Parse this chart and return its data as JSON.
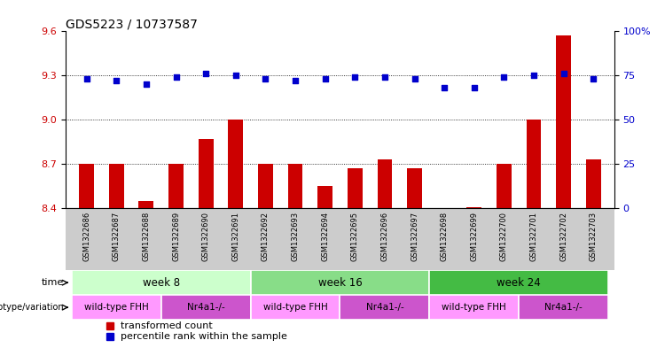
{
  "title": "GDS5223 / 10737587",
  "samples": [
    "GSM1322686",
    "GSM1322687",
    "GSM1322688",
    "GSM1322689",
    "GSM1322690",
    "GSM1322691",
    "GSM1322692",
    "GSM1322693",
    "GSM1322694",
    "GSM1322695",
    "GSM1322696",
    "GSM1322697",
    "GSM1322698",
    "GSM1322699",
    "GSM1322700",
    "GSM1322701",
    "GSM1322702",
    "GSM1322703"
  ],
  "red_values": [
    8.7,
    8.7,
    8.45,
    8.7,
    8.87,
    9.0,
    8.7,
    8.7,
    8.55,
    8.67,
    8.73,
    8.67,
    8.4,
    8.41,
    8.7,
    9.0,
    9.57,
    8.73
  ],
  "blue_values": [
    73,
    72,
    70,
    74,
    76,
    75,
    73,
    72,
    73,
    74,
    74,
    73,
    68,
    68,
    74,
    75,
    76,
    73
  ],
  "ylim_left": [
    8.4,
    9.6
  ],
  "ylim_right": [
    0,
    100
  ],
  "yticks_left": [
    8.4,
    8.7,
    9.0,
    9.3,
    9.6
  ],
  "yticks_right": [
    0,
    25,
    50,
    75,
    100
  ],
  "hlines": [
    8.7,
    9.0,
    9.3
  ],
  "bar_color": "#cc0000",
  "dot_color": "#0000cc",
  "week8_color": "#ccffcc",
  "week16_color": "#88dd88",
  "week24_color": "#44bb44",
  "wt_color": "#ff99ff",
  "nr_color": "#cc55cc",
  "sample_bg": "#cccccc",
  "time_groups": [
    {
      "label": "week 8",
      "start": 0,
      "end": 5
    },
    {
      "label": "week 16",
      "start": 6,
      "end": 11
    },
    {
      "label": "week 24",
      "start": 12,
      "end": 17
    }
  ],
  "genotype_groups": [
    {
      "label": "wild-type FHH",
      "start": 0,
      "end": 2,
      "color": "#ff99ff"
    },
    {
      "label": "Nr4a1-/-",
      "start": 3,
      "end": 5,
      "color": "#cc55cc"
    },
    {
      "label": "wild-type FHH",
      "start": 6,
      "end": 8,
      "color": "#ff99ff"
    },
    {
      "label": "Nr4a1-/-",
      "start": 9,
      "end": 11,
      "color": "#cc55cc"
    },
    {
      "label": "wild-type FHH",
      "start": 12,
      "end": 14,
      "color": "#ff99ff"
    },
    {
      "label": "Nr4a1-/-",
      "start": 15,
      "end": 17,
      "color": "#cc55cc"
    }
  ]
}
